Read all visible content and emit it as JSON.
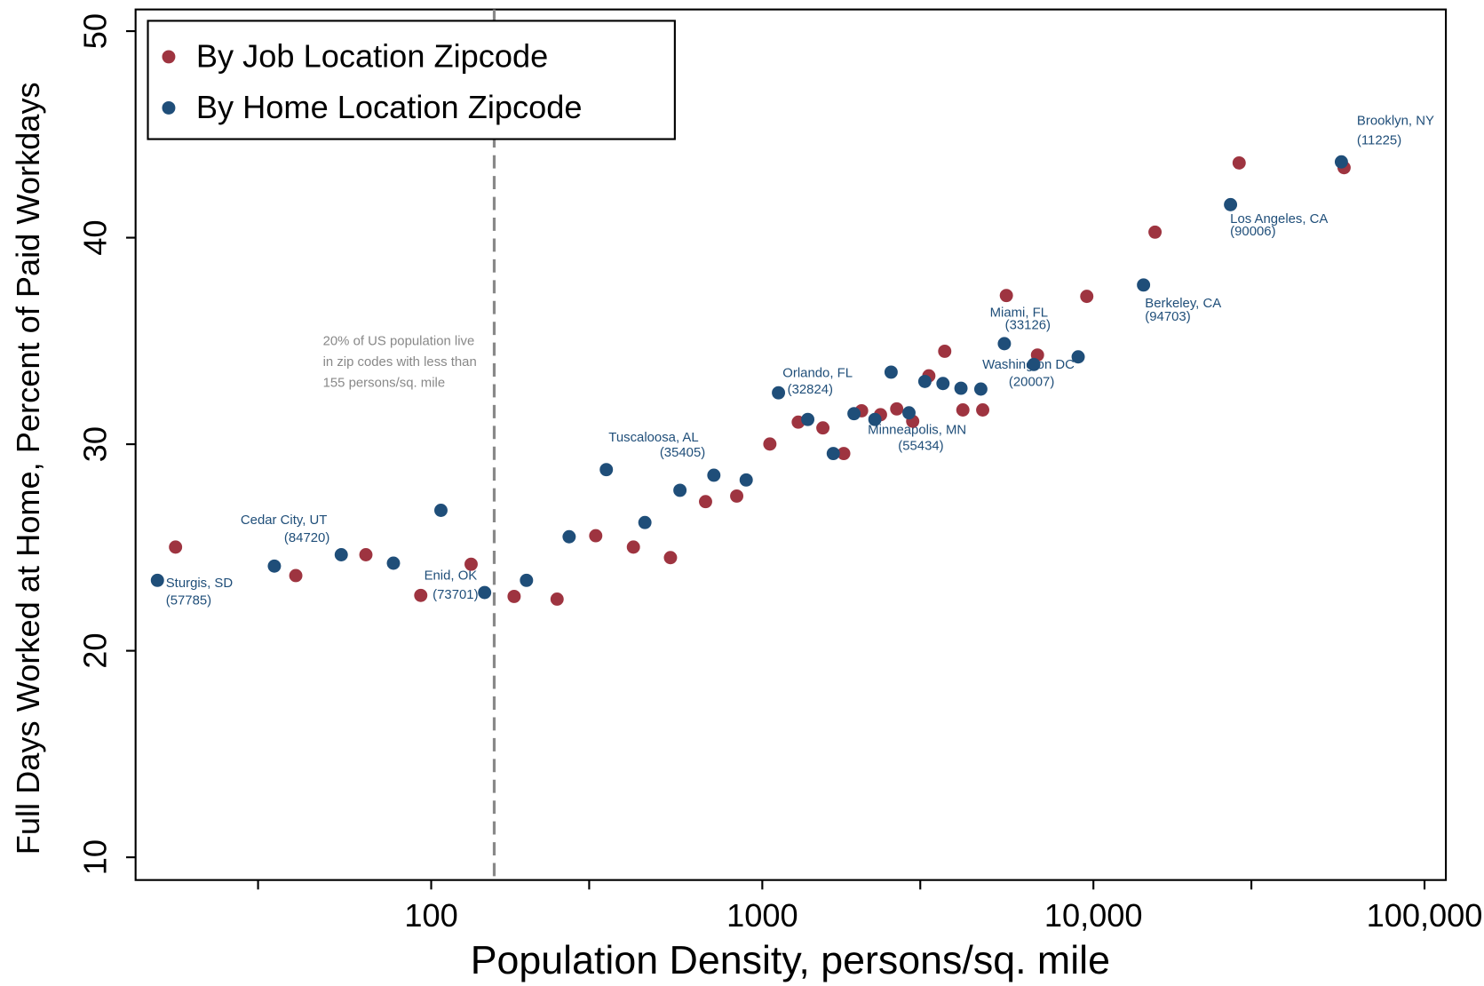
{
  "chart_data": {
    "type": "scatter",
    "xlabel": "Population Density, persons/sq. mile",
    "ylabel": "Full Days Worked at Home, Percent of Paid Workdays",
    "xscale": "log",
    "xlim": [
      12.8,
      116000
    ],
    "ylim": [
      8.9,
      51.05
    ],
    "xticks": [
      100,
      1000,
      {
        "value": 10000,
        "label": "10,000"
      },
      {
        "value": 100000,
        "label": "100,000"
      }
    ],
    "xminorticks": [
      30,
      300,
      3000,
      30000
    ],
    "yticks": [
      10,
      20,
      30,
      40,
      50
    ],
    "legend_position": "upper left",
    "reference_line": {
      "x": 155,
      "style": "dashed",
      "color": "#888888"
    },
    "note": [
      "20% of US population live",
      "in zip codes with less than",
      "155 persons/sq. mile"
    ],
    "annotations": [
      [
        "Brooklyn, NY",
        "(11225)"
      ],
      [
        "Los Angeles, CA",
        "(90006)"
      ],
      [
        "Berkeley, CA",
        "(94703)"
      ],
      [
        "Miami, FL",
        "(33126)"
      ],
      [
        "Washington DC",
        "(20007)"
      ],
      [
        "Orlando, FL",
        "(32824)"
      ],
      [
        "Minneapolis, MN",
        "(55434)"
      ],
      [
        "Tuscaloosa, AL",
        "(35405)"
      ],
      [
        "Cedar City, UT",
        "(84720)"
      ],
      [
        "Enid, OK",
        "(73701)"
      ],
      [
        "Sturgis, SD",
        "(57785)"
      ]
    ],
    "annotation_color": "#1f4e79",
    "series": [
      {
        "name": "By Job Location Zipcode",
        "color": "#9e3440",
        "x": [
          16.9,
          39,
          63.5,
          93,
          132,
          178,
          240,
          314,
          408,
          528,
          674,
          837,
          1054,
          1284,
          1524,
          1762,
          1995,
          2275,
          2547,
          2846,
          3184,
          3556,
          4034,
          4631,
          5459,
          6778,
          9550,
          15350,
          27550,
          57150
        ],
        "y": [
          25.02,
          23.64,
          24.65,
          22.68,
          24.19,
          22.63,
          22.5,
          25.57,
          25.02,
          24.51,
          27.22,
          27.49,
          30.01,
          31.07,
          30.79,
          29.55,
          31.62,
          31.43,
          31.71,
          31.11,
          33.31,
          34.5,
          31.66,
          31.66,
          37.2,
          34.32,
          37.16,
          40.27,
          43.62,
          43.39
        ]
      },
      {
        "name": "By Home Location Zipcode",
        "color": "#1f4e79",
        "x": [
          14.9,
          33.6,
          53.5,
          76.9,
          107,
          145,
          194,
          261,
          338,
          442,
          564,
          714,
          894,
          1119,
          1372,
          1638,
          1892,
          2188,
          2449,
          2773,
          3097,
          3513,
          3981,
          4571,
          5383,
          6607,
          8995,
          14170,
          25950,
          56090
        ],
        "y": [
          23.41,
          24.1,
          24.65,
          24.24,
          26.8,
          22.82,
          23.41,
          25.52,
          28.77,
          26.21,
          27.77,
          28.5,
          28.27,
          32.49,
          31.2,
          29.55,
          31.48,
          31.2,
          33.49,
          31.52,
          33.04,
          32.94,
          32.71,
          32.67,
          34.87,
          33.86,
          34.23,
          37.71,
          41.6,
          43.67
        ]
      }
    ]
  }
}
